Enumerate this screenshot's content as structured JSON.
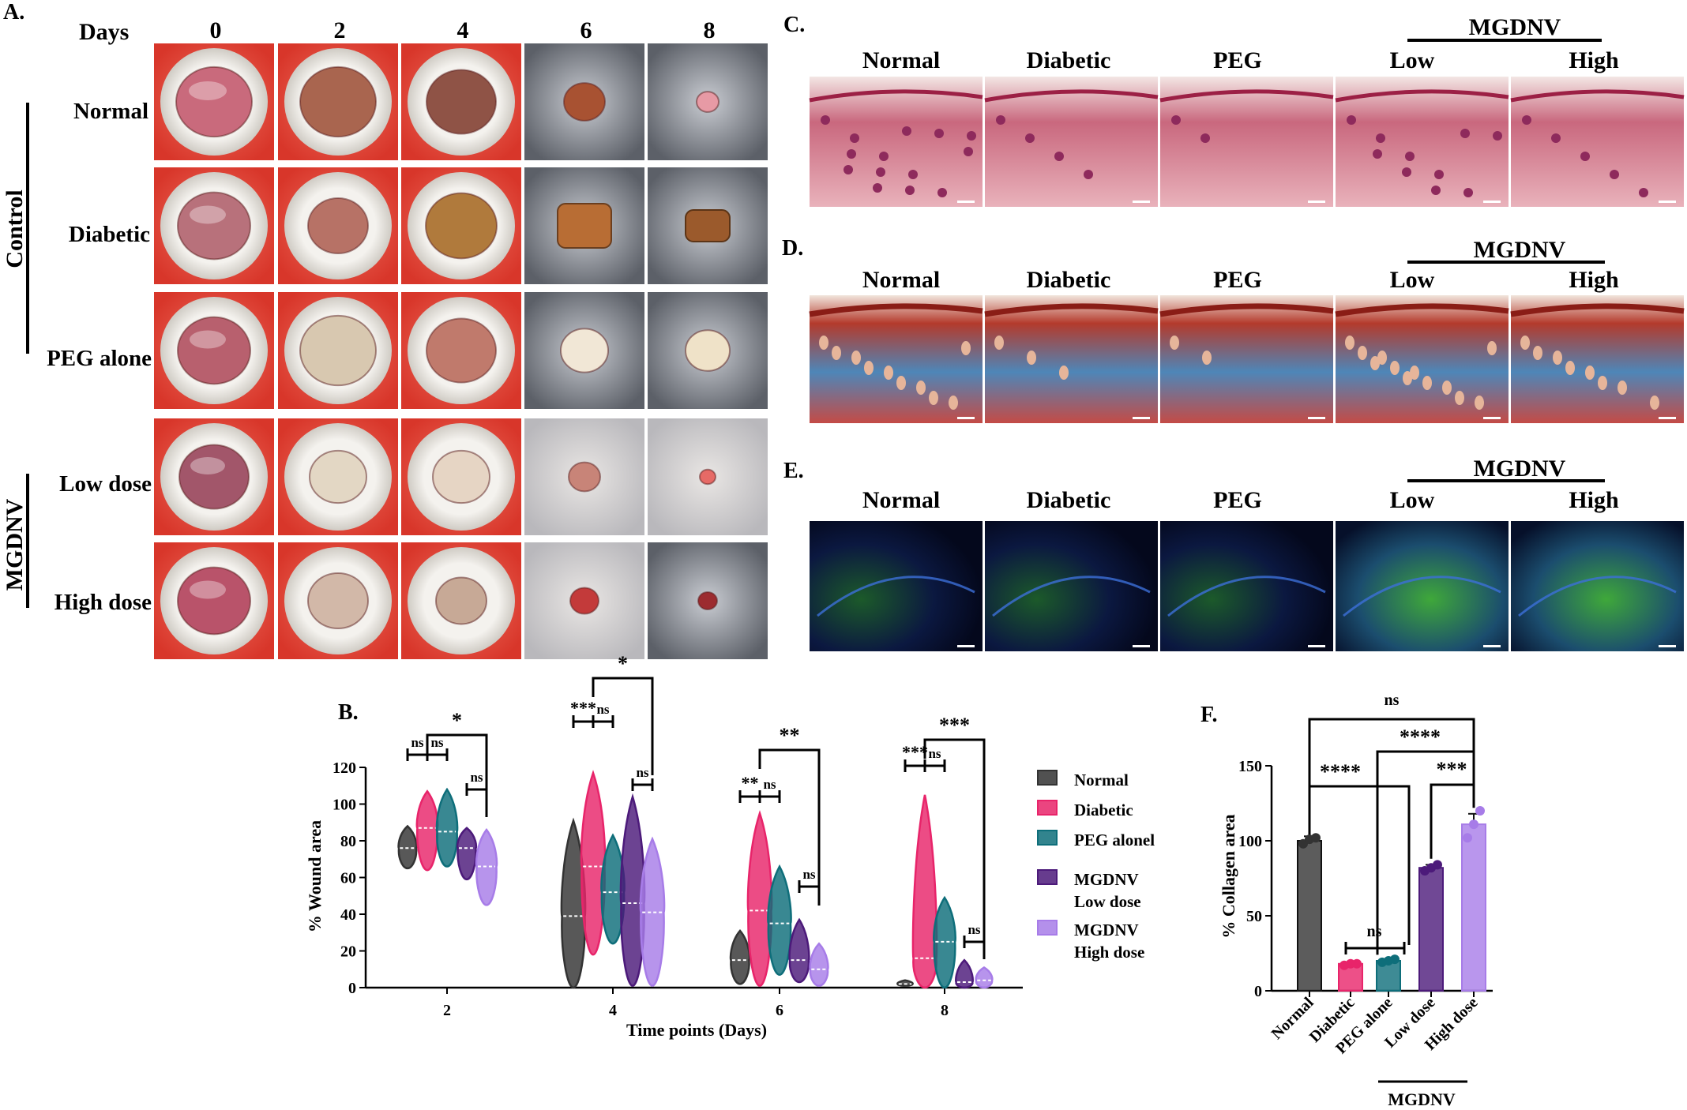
{
  "panel_a": {
    "label": "A.",
    "days_header": "Days",
    "days": [
      "0",
      "2",
      "4",
      "6",
      "8"
    ],
    "rows": [
      "Normal",
      "Diabetic",
      "PEG alone",
      "Low dose",
      "High dose"
    ],
    "group_control": "Control",
    "group_mgdnv": "MGDNV"
  },
  "panel_c": {
    "label": "C.",
    "group": "MGDNV",
    "columns": [
      "Normal",
      "Diabetic",
      "PEG",
      "Low",
      "High"
    ]
  },
  "panel_d": {
    "label": "D.",
    "group": "MGDNV",
    "columns": [
      "Normal",
      "Diabetic",
      "PEG",
      "Low",
      "High"
    ]
  },
  "panel_e": {
    "label": "E.",
    "group": "MGDNV",
    "columns": [
      "Normal",
      "Diabetic",
      "PEG",
      "Low",
      "High"
    ]
  },
  "colors": {
    "normal": "#333333",
    "diabetic": "#e8246a",
    "peg": "#0e6e7a",
    "mgdnv_low": "#4c1a7a",
    "mgdnv_high": "#a77ce8"
  },
  "chart_data": [
    {
      "panel": "B.",
      "type": "violin",
      "title": "",
      "xlabel": "Time points (Days)",
      "ylabel": "% Wound area",
      "ylim": [
        0,
        120
      ],
      "yticks": [
        "0",
        "20",
        "40",
        "60",
        "80",
        "100",
        "120"
      ],
      "categories": [
        "2",
        "4",
        "6",
        "8"
      ],
      "legend": [
        "Normal",
        "Diabetic",
        "PEG alonel",
        "MGDNV Low dose",
        "MGDNV High dose"
      ],
      "legend_lines": [
        [
          "Normal"
        ],
        [
          "Diabetic"
        ],
        [
          "PEG alonel"
        ],
        [
          "MGDNV",
          "Low dose"
        ],
        [
          "MGDNV",
          "High dose"
        ]
      ],
      "series": [
        {
          "name": "Normal",
          "min": [
            65,
            0,
            2,
            1
          ],
          "max": [
            88,
            91,
            31,
            4
          ],
          "median": [
            76,
            39,
            15,
            2
          ]
        },
        {
          "name": "Diabetic",
          "min": [
            64,
            18,
            1,
            0
          ],
          "max": [
            107,
            117,
            95,
            105
          ],
          "median": [
            87,
            66,
            42,
            16
          ]
        },
        {
          "name": "PEG alonel",
          "min": [
            66,
            24,
            7,
            0
          ],
          "max": [
            108,
            83,
            66,
            49
          ],
          "median": [
            85,
            52,
            35,
            25
          ]
        },
        {
          "name": "MGDNV Low dose",
          "min": [
            59,
            1,
            3,
            0
          ],
          "max": [
            87,
            104,
            37,
            15
          ],
          "median": [
            76,
            46,
            15,
            3
          ]
        },
        {
          "name": "MGDNV High dose",
          "min": [
            45,
            1,
            1,
            0
          ],
          "max": [
            86,
            81,
            24,
            11
          ],
          "median": [
            66,
            41,
            10,
            4
          ]
        }
      ],
      "annotations": [
        {
          "text": "ns",
          "day": "2",
          "from": 0,
          "to": 1,
          "style": "short"
        },
        {
          "text": "ns",
          "day": "2",
          "from": 1,
          "to": 2,
          "style": "short"
        },
        {
          "text": "ns",
          "day": "2",
          "from": 3,
          "to": 4,
          "style": "short"
        },
        {
          "text": "*",
          "day": "2",
          "from": 1,
          "to": 4,
          "style": "bracket"
        },
        {
          "text": "***",
          "day": "4",
          "from": 0,
          "to": 1,
          "style": "short"
        },
        {
          "text": "ns",
          "day": "4",
          "from": 1,
          "to": 2,
          "style": "short"
        },
        {
          "text": "ns",
          "day": "4",
          "from": 3,
          "to": 4,
          "style": "short"
        },
        {
          "text": "*",
          "day": "4",
          "from": 1,
          "to": 4,
          "style": "bracket"
        },
        {
          "text": "**",
          "day": "6",
          "from": 0,
          "to": 1,
          "style": "short"
        },
        {
          "text": "ns",
          "day": "6",
          "from": 1,
          "to": 2,
          "style": "short"
        },
        {
          "text": "ns",
          "day": "6",
          "from": 3,
          "to": 4,
          "style": "short"
        },
        {
          "text": "**",
          "day": "6",
          "from": 1,
          "to": 4,
          "style": "bracket"
        },
        {
          "text": "***",
          "day": "8",
          "from": 0,
          "to": 1,
          "style": "short"
        },
        {
          "text": "ns",
          "day": "8",
          "from": 1,
          "to": 2,
          "style": "short"
        },
        {
          "text": "ns",
          "day": "8",
          "from": 3,
          "to": 4,
          "style": "short"
        },
        {
          "text": "***",
          "day": "8",
          "from": 1,
          "to": 4,
          "style": "bracket"
        }
      ]
    },
    {
      "panel": "F.",
      "type": "bar",
      "title": "",
      "xlabel": "",
      "ylabel": "% Collagen area",
      "ylim": [
        0,
        150
      ],
      "yticks": [
        "0",
        "50",
        "100",
        "150"
      ],
      "categories": [
        "Normal",
        "Diabetic",
        "PEG alone",
        "Low dose",
        "High dose"
      ],
      "values": [
        100,
        18,
        20,
        82,
        111
      ],
      "errors": [
        3,
        1,
        1,
        2,
        7
      ],
      "points": [
        [
          98,
          101,
          102
        ],
        [
          17,
          18,
          18
        ],
        [
          19,
          20,
          21
        ],
        [
          80,
          82,
          84
        ],
        [
          102,
          111,
          120
        ]
      ],
      "group_label": "MGDNV",
      "annotations": [
        {
          "text": "ns",
          "from": 0,
          "to": 4
        },
        {
          "text": "****",
          "from": 0,
          "to": 2
        },
        {
          "text": "****",
          "from": 2,
          "to": 4
        },
        {
          "text": "***",
          "from": 3,
          "to": 4
        },
        {
          "text": "ns",
          "from": 1,
          "to": 2
        }
      ]
    }
  ]
}
